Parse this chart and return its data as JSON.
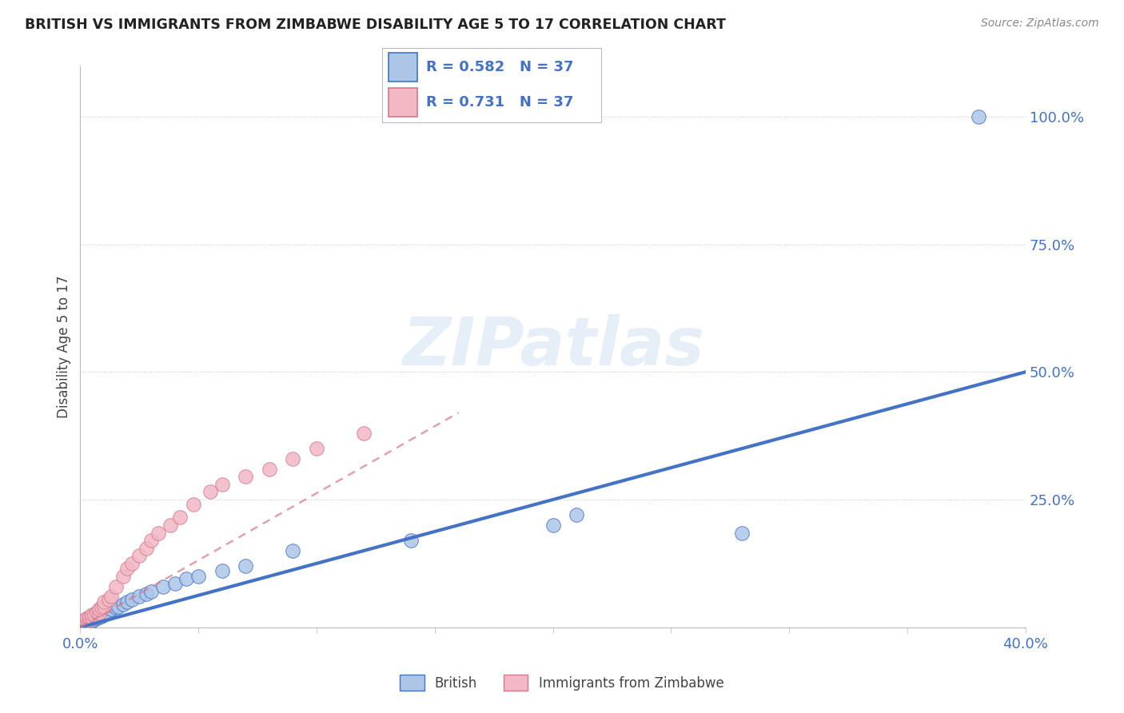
{
  "title": "BRITISH VS IMMIGRANTS FROM ZIMBABWE DISABILITY AGE 5 TO 17 CORRELATION CHART",
  "source": "Source: ZipAtlas.com",
  "ylabel": "Disability Age 5 to 17",
  "xlim": [
    0.0,
    0.4
  ],
  "ylim": [
    0.0,
    1.1
  ],
  "ytick_positions": [
    0.0,
    0.25,
    0.5,
    0.75,
    1.0
  ],
  "legend_r_british": "0.582",
  "legend_n_british": "37",
  "legend_r_zimbabwe": "0.731",
  "legend_n_zimbabwe": "37",
  "british_color": "#adc6e8",
  "zimbabwe_color": "#f2b8c6",
  "british_line_color": "#4472c4",
  "zimbabwe_line_color": "#d4788a",
  "tick_color": "#4472c4",
  "watermark": "ZIPatlas",
  "british_x": [
    0.001,
    0.002,
    0.002,
    0.003,
    0.003,
    0.004,
    0.004,
    0.005,
    0.005,
    0.006,
    0.007,
    0.008,
    0.009,
    0.01,
    0.01,
    0.012,
    0.013,
    0.015,
    0.016,
    0.018,
    0.02,
    0.022,
    0.025,
    0.028,
    0.03,
    0.035,
    0.04,
    0.045,
    0.05,
    0.06,
    0.07,
    0.09,
    0.14,
    0.2,
    0.21,
    0.28,
    0.38
  ],
  "british_y": [
    0.005,
    0.008,
    0.01,
    0.012,
    0.015,
    0.01,
    0.018,
    0.012,
    0.02,
    0.015,
    0.018,
    0.02,
    0.022,
    0.025,
    0.03,
    0.028,
    0.035,
    0.038,
    0.04,
    0.045,
    0.05,
    0.055,
    0.06,
    0.065,
    0.07,
    0.08,
    0.085,
    0.095,
    0.1,
    0.11,
    0.12,
    0.15,
    0.17,
    0.2,
    0.22,
    0.185,
    1.0
  ],
  "zimbabwe_x": [
    0.001,
    0.001,
    0.002,
    0.002,
    0.003,
    0.003,
    0.004,
    0.004,
    0.005,
    0.005,
    0.006,
    0.007,
    0.008,
    0.008,
    0.009,
    0.01,
    0.01,
    0.012,
    0.013,
    0.015,
    0.018,
    0.02,
    0.022,
    0.025,
    0.028,
    0.03,
    0.033,
    0.038,
    0.042,
    0.048,
    0.055,
    0.06,
    0.07,
    0.08,
    0.09,
    0.1,
    0.12
  ],
  "zimbabwe_y": [
    0.005,
    0.008,
    0.01,
    0.015,
    0.012,
    0.018,
    0.015,
    0.02,
    0.018,
    0.025,
    0.025,
    0.03,
    0.028,
    0.035,
    0.038,
    0.04,
    0.05,
    0.055,
    0.06,
    0.08,
    0.1,
    0.115,
    0.125,
    0.14,
    0.155,
    0.17,
    0.185,
    0.2,
    0.215,
    0.24,
    0.265,
    0.28,
    0.295,
    0.31,
    0.33,
    0.35,
    0.38
  ],
  "british_trend": [
    0.0,
    0.4,
    0.0,
    0.5
  ],
  "zimbabwe_trend_x": [
    0.0,
    0.16
  ],
  "zimbabwe_trend_y": [
    0.0,
    0.42
  ]
}
